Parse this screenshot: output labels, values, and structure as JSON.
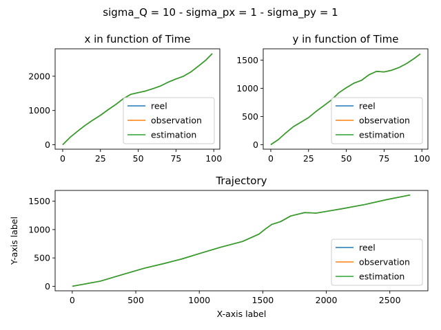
{
  "figure": {
    "suptitle": "sigma_Q = 10 - sigma_px = 1 - sigma_py = 1"
  },
  "colors": {
    "reel": "#1f77b4",
    "observation": "#ff7f0e",
    "estimation": "#2ca02c"
  },
  "chart_data": [
    {
      "type": "line",
      "title": "x in function of Time",
      "xlabel": "",
      "ylabel": "",
      "xlim": [
        -5,
        104
      ],
      "ylim": [
        -130,
        2800
      ],
      "xticks": [
        0,
        25,
        50,
        75,
        100
      ],
      "yticks": [
        0,
        1000,
        2000
      ],
      "legend": {
        "position": "lower-right",
        "entries": [
          "reel",
          "observation",
          "estimation"
        ]
      },
      "x": [
        0,
        5,
        10,
        15,
        20,
        25,
        30,
        35,
        40,
        45,
        50,
        55,
        60,
        65,
        70,
        75,
        80,
        85,
        90,
        95,
        99
      ],
      "series": [
        {
          "name": "reel",
          "values": [
            0,
            220,
            400,
            570,
            720,
            860,
            1020,
            1170,
            1340,
            1470,
            1520,
            1570,
            1640,
            1720,
            1830,
            1920,
            2000,
            2130,
            2300,
            2480,
            2660
          ]
        },
        {
          "name": "observation",
          "values": [
            0,
            220,
            400,
            570,
            720,
            860,
            1020,
            1170,
            1340,
            1470,
            1520,
            1570,
            1640,
            1720,
            1830,
            1920,
            2000,
            2130,
            2300,
            2480,
            2660
          ]
        },
        {
          "name": "estimation",
          "values": [
            0,
            220,
            400,
            570,
            720,
            860,
            1020,
            1170,
            1340,
            1470,
            1520,
            1570,
            1640,
            1720,
            1830,
            1920,
            2000,
            2130,
            2300,
            2480,
            2660
          ]
        }
      ]
    },
    {
      "type": "line",
      "title": "y in function of Time",
      "xlabel": "",
      "ylabel": "",
      "xlim": [
        -5,
        104
      ],
      "ylim": [
        -80,
        1700
      ],
      "xticks": [
        0,
        25,
        50,
        75,
        100
      ],
      "yticks": [
        0,
        500,
        1000,
        1500
      ],
      "legend": {
        "position": "lower-right",
        "entries": [
          "reel",
          "observation",
          "estimation"
        ]
      },
      "x": [
        0,
        5,
        10,
        15,
        20,
        25,
        30,
        35,
        40,
        45,
        50,
        55,
        60,
        65,
        70,
        75,
        80,
        85,
        90,
        95,
        99
      ],
      "series": [
        {
          "name": "reel",
          "values": [
            0,
            90,
            210,
            320,
            400,
            480,
            590,
            690,
            790,
            920,
            1010,
            1090,
            1140,
            1240,
            1300,
            1290,
            1320,
            1370,
            1440,
            1530,
            1610
          ]
        },
        {
          "name": "observation",
          "values": [
            0,
            90,
            210,
            320,
            400,
            480,
            590,
            690,
            790,
            920,
            1010,
            1090,
            1140,
            1240,
            1300,
            1290,
            1320,
            1370,
            1440,
            1530,
            1610
          ]
        },
        {
          "name": "estimation",
          "values": [
            0,
            90,
            210,
            320,
            400,
            480,
            590,
            690,
            790,
            920,
            1010,
            1090,
            1140,
            1240,
            1300,
            1290,
            1320,
            1370,
            1440,
            1530,
            1610
          ]
        }
      ]
    },
    {
      "type": "line",
      "title": "Trajectory",
      "xlabel": "X-axis label",
      "ylabel": "Y-axis label",
      "xlim": [
        -135,
        2800
      ],
      "ylim": [
        -80,
        1690
      ],
      "xticks": [
        0,
        500,
        1000,
        1500,
        2000,
        2500
      ],
      "yticks": [
        0,
        500,
        1000,
        1500
      ],
      "legend": {
        "position": "lower-right",
        "entries": [
          "reel",
          "observation",
          "estimation"
        ]
      },
      "x": [
        0,
        220,
        400,
        570,
        720,
        860,
        1020,
        1170,
        1340,
        1470,
        1520,
        1570,
        1640,
        1720,
        1830,
        1920,
        2000,
        2130,
        2300,
        2480,
        2660
      ],
      "series": [
        {
          "name": "reel",
          "values": [
            0,
            90,
            210,
            320,
            400,
            480,
            590,
            690,
            790,
            920,
            1010,
            1090,
            1140,
            1240,
            1300,
            1290,
            1320,
            1370,
            1440,
            1530,
            1610
          ]
        },
        {
          "name": "observation",
          "values": [
            0,
            90,
            210,
            320,
            400,
            480,
            590,
            690,
            790,
            920,
            1010,
            1090,
            1140,
            1240,
            1300,
            1290,
            1320,
            1370,
            1440,
            1530,
            1610
          ]
        },
        {
          "name": "estimation",
          "values": [
            0,
            90,
            210,
            320,
            400,
            480,
            590,
            690,
            790,
            920,
            1010,
            1090,
            1140,
            1240,
            1300,
            1290,
            1320,
            1370,
            1440,
            1530,
            1610
          ]
        }
      ]
    }
  ]
}
